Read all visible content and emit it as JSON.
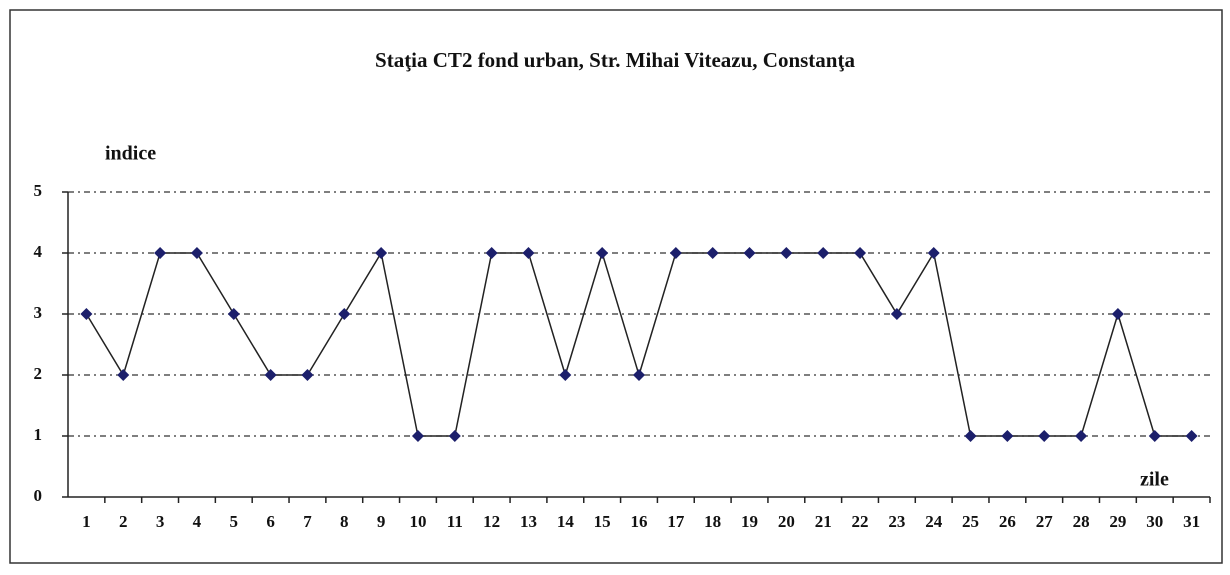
{
  "chart_data": {
    "type": "line",
    "title": "Staţia CT2 fond urban,  Str. Mihai Viteazu, Constanţa",
    "y_label": "indice",
    "x_label": "zile",
    "categories": [
      "1",
      "2",
      "3",
      "4",
      "5",
      "6",
      "7",
      "8",
      "9",
      "10",
      "11",
      "12",
      "13",
      "14",
      "15",
      "16",
      "17",
      "18",
      "19",
      "20",
      "21",
      "22",
      "23",
      "24",
      "25",
      "26",
      "27",
      "28",
      "29",
      "30",
      "31"
    ],
    "values": [
      3,
      2,
      4,
      4,
      3,
      2,
      2,
      3,
      4,
      1,
      1,
      4,
      4,
      2,
      4,
      2,
      4,
      4,
      4,
      4,
      4,
      4,
      3,
      4,
      1,
      1,
      1,
      1,
      3,
      1,
      1
    ],
    "color": "#1c1f6b",
    "line_color": "#222222",
    "ylim": [
      0,
      5
    ],
    "yticks": [
      0,
      1,
      2,
      3,
      4,
      5
    ],
    "grid": true
  }
}
